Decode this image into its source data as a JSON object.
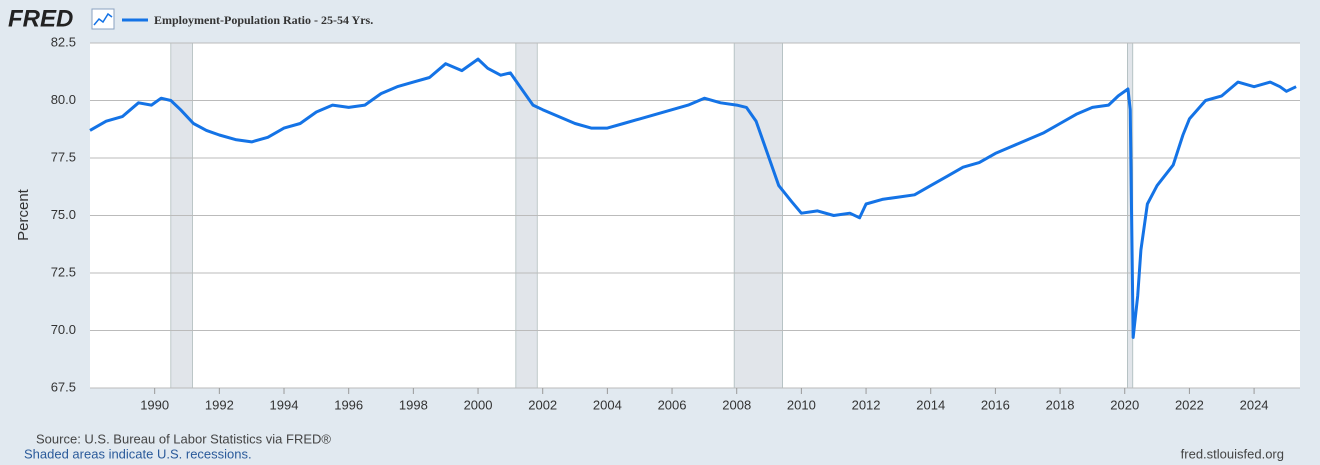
{
  "chart_data": {
    "type": "line",
    "logo": "FRED",
    "y_label": "Percent",
    "source": "Source: U.S. Bureau of Labor Statistics via FRED®",
    "note": "Shaded areas indicate U.S. recessions.",
    "website": "fred.stlouisfed.org",
    "xlim": [
      1988,
      2025.42
    ],
    "xticks": [
      1990,
      1992,
      1994,
      1996,
      1998,
      2000,
      2002,
      2004,
      2006,
      2008,
      2010,
      2012,
      2014,
      2016,
      2018,
      2020,
      2022,
      2024
    ],
    "ylim": [
      67.5,
      82.5
    ],
    "yticks": [
      67.5,
      {
        "value": 70,
        "label": "70.0"
      },
      72.5,
      {
        "value": 75,
        "label": "75.0"
      },
      77.5,
      {
        "value": 80,
        "label": "80.0"
      },
      82.5
    ],
    "grid": true,
    "recession_color": "#e1e5ea",
    "recessions": [
      [
        1990.5,
        1991.17
      ],
      [
        2001.17,
        2001.83
      ],
      [
        2007.92,
        2009.42
      ],
      [
        2020.08,
        2020.25
      ]
    ],
    "x": [
      1988.0,
      1988.5,
      1989.0,
      1989.5,
      1989.9,
      1990.2,
      1990.5,
      1990.8,
      1991.2,
      1991.6,
      1992.0,
      1992.5,
      1993.0,
      1993.5,
      1994.0,
      1994.5,
      1995.0,
      1995.5,
      1996.0,
      1996.5,
      1997.0,
      1997.5,
      1998.0,
      1998.5,
      1999.0,
      1999.5,
      2000.0,
      2000.3,
      2000.7,
      2001.0,
      2001.3,
      2001.7,
      2002.0,
      2002.5,
      2003.0,
      2003.5,
      2004.0,
      2004.5,
      2005.0,
      2005.5,
      2006.0,
      2006.5,
      2007.0,
      2007.5,
      2008.0,
      2008.3,
      2008.6,
      2009.0,
      2009.3,
      2009.7,
      2010.0,
      2010.5,
      2011.0,
      2011.5,
      2011.8,
      2012.0,
      2012.5,
      2013.0,
      2013.5,
      2014.0,
      2014.5,
      2015.0,
      2015.5,
      2016.0,
      2016.5,
      2017.0,
      2017.5,
      2018.0,
      2018.5,
      2019.0,
      2019.5,
      2019.8,
      2020.1,
      2020.17,
      2020.26,
      2020.4,
      2020.5,
      2020.7,
      2021.0,
      2021.5,
      2021.8,
      2022.0,
      2022.5,
      2023.0,
      2023.5,
      2024.0,
      2024.5,
      2024.8,
      2025.0,
      2025.3
    ],
    "series": [
      {
        "name": "Employment-Population Ratio - 25-54 Yrs.",
        "color": "#1473e6",
        "values": [
          78.7,
          79.1,
          79.3,
          79.9,
          79.8,
          80.1,
          80.0,
          79.6,
          79.0,
          78.7,
          78.5,
          78.3,
          78.2,
          78.4,
          78.8,
          79.0,
          79.5,
          79.8,
          79.7,
          79.8,
          80.3,
          80.6,
          80.8,
          81.0,
          81.6,
          81.3,
          81.8,
          81.4,
          81.1,
          81.2,
          80.6,
          79.8,
          79.6,
          79.3,
          79.0,
          78.8,
          78.8,
          79.0,
          79.2,
          79.4,
          79.6,
          79.8,
          80.1,
          79.9,
          79.8,
          79.7,
          79.1,
          77.5,
          76.3,
          75.6,
          75.1,
          75.2,
          75.0,
          75.1,
          74.9,
          75.5,
          75.7,
          75.8,
          75.9,
          76.3,
          76.7,
          77.1,
          77.3,
          77.7,
          78.0,
          78.3,
          78.6,
          79.0,
          79.4,
          79.7,
          79.8,
          80.2,
          80.5,
          79.6,
          69.7,
          71.5,
          73.5,
          75.5,
          76.3,
          77.2,
          78.5,
          79.2,
          80.0,
          80.2,
          80.8,
          80.6,
          80.8,
          80.6,
          80.4,
          80.6
        ]
      }
    ]
  }
}
